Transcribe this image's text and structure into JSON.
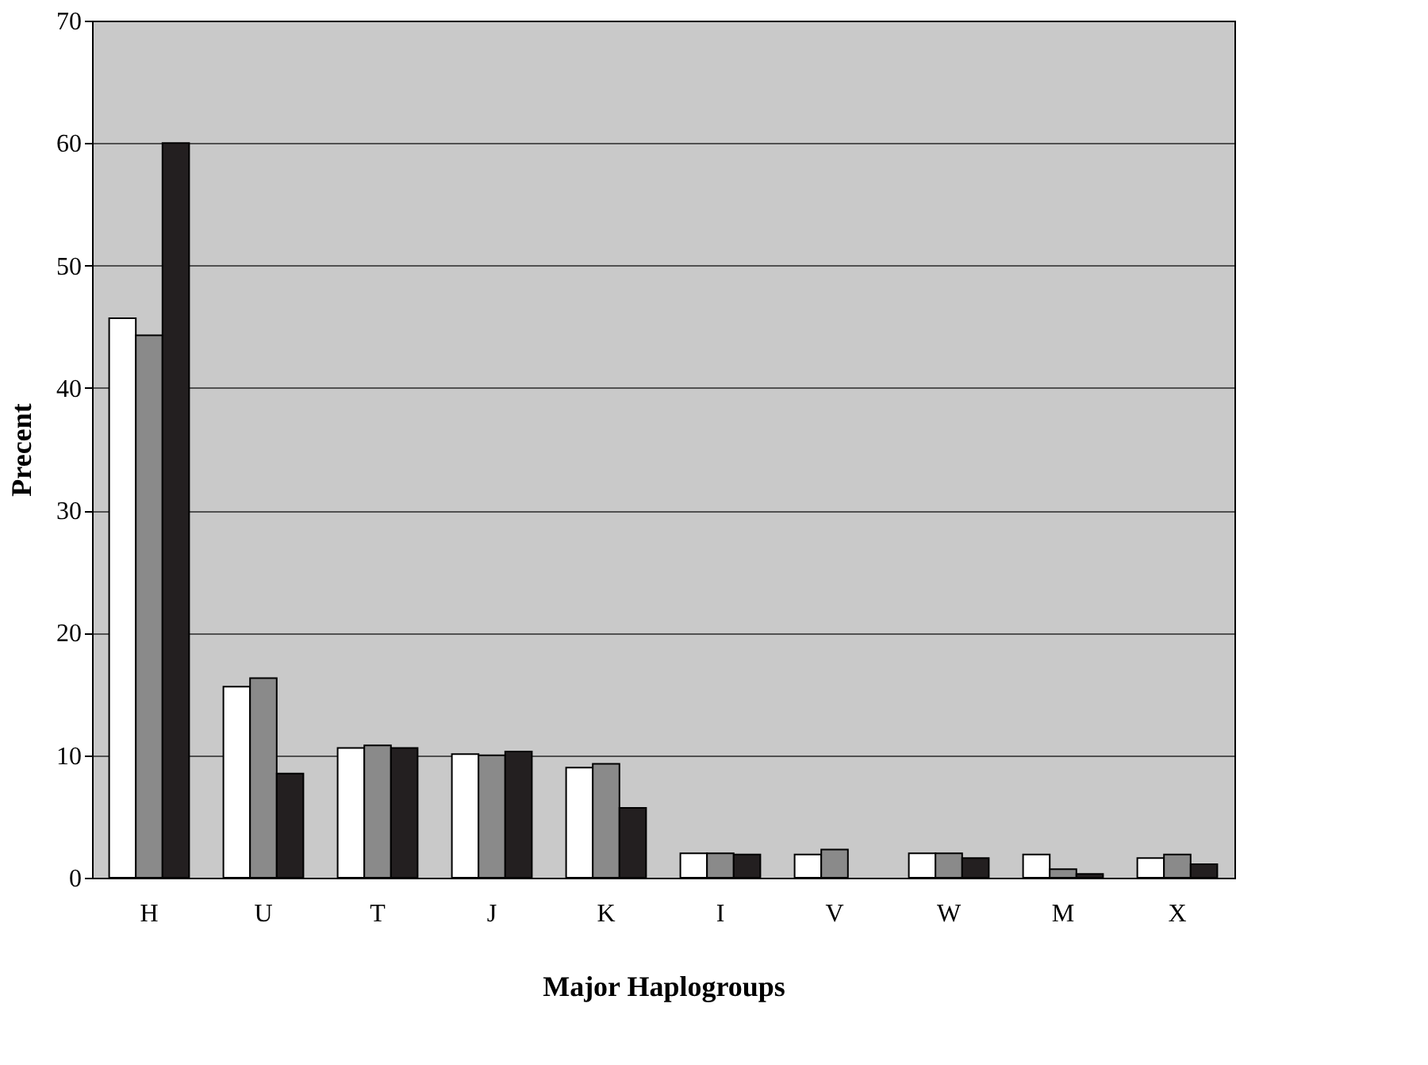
{
  "chart_data": {
    "type": "bar",
    "xlabel": "Major Haplogroups",
    "ylabel": "Precent",
    "categories": [
      "H",
      "U",
      "T",
      "J",
      "K",
      "I",
      "V",
      "W",
      "M",
      "X"
    ],
    "series": [
      {
        "color": "#ffffff",
        "values": [
          45.7,
          15.6,
          10.6,
          10.1,
          9.0,
          2.0,
          1.9,
          2.0,
          1.9,
          1.6
        ]
      },
      {
        "color": "#8a8a8a",
        "values": [
          44.3,
          16.3,
          10.8,
          10.0,
          9.3,
          2.0,
          2.3,
          2.0,
          0.7,
          1.9
        ]
      },
      {
        "color": "#231f20",
        "values": [
          60.0,
          8.5,
          10.6,
          10.3,
          5.7,
          1.9,
          null,
          1.6,
          0.3,
          1.1
        ]
      }
    ],
    "ylim": [
      0,
      70
    ],
    "yticks": [
      0,
      10,
      20,
      30,
      40,
      50,
      60,
      70
    ],
    "grid": "y",
    "legend": false
  }
}
